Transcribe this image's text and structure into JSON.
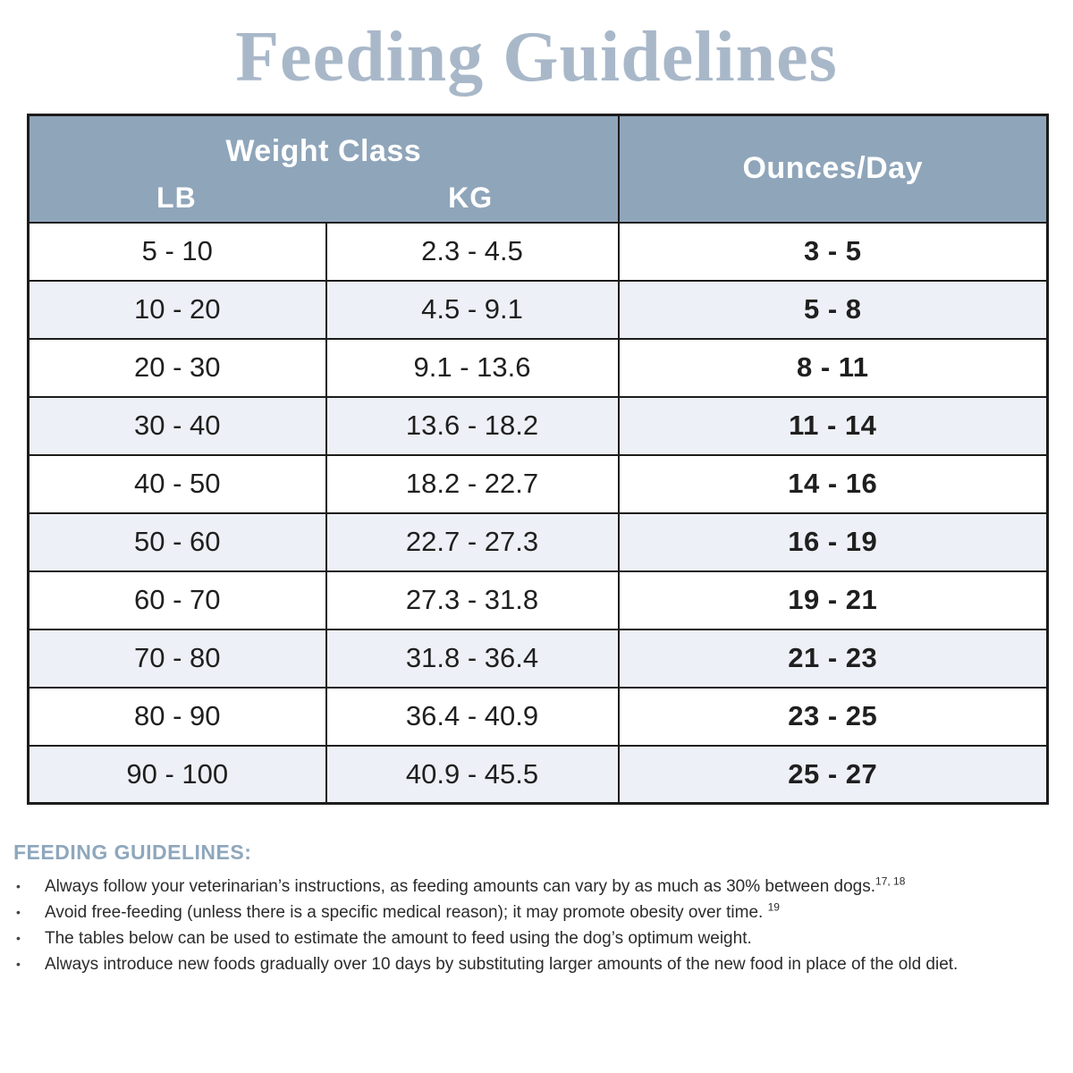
{
  "page": {
    "title": "Feeding Guidelines"
  },
  "table": {
    "header": {
      "weight_class": "Weight Class",
      "lb": "LB",
      "kg": "KG",
      "ounces": "Ounces/Day"
    },
    "rows": [
      {
        "lb": "5 - 10",
        "kg": "2.3 - 4.5",
        "oz": "3 - 5"
      },
      {
        "lb": "10 - 20",
        "kg": "4.5 - 9.1",
        "oz": "5 - 8"
      },
      {
        "lb": "20 - 30",
        "kg": "9.1 - 13.6",
        "oz": "8 - 11"
      },
      {
        "lb": "30 - 40",
        "kg": "13.6 - 18.2",
        "oz": "11 - 14"
      },
      {
        "lb": "40 - 50",
        "kg": "18.2 - 22.7",
        "oz": "14 - 16"
      },
      {
        "lb": "50 - 60",
        "kg": "22.7 - 27.3",
        "oz": "16 - 19"
      },
      {
        "lb": "60 - 70",
        "kg": "27.3 - 31.8",
        "oz": "19 - 21"
      },
      {
        "lb": "70 - 80",
        "kg": "31.8 - 36.4",
        "oz": "21 - 23"
      },
      {
        "lb": "80 - 90",
        "kg": "36.4 - 40.9",
        "oz": "23 - 25"
      },
      {
        "lb": "90 - 100",
        "kg": "40.9 - 45.5",
        "oz": "25 - 27"
      }
    ]
  },
  "notes": {
    "heading": "FEEDING GUIDELINES:",
    "bullet_glyph": "•",
    "bullets": [
      {
        "text": "Always follow your veterinarian’s instructions, as feeding amounts can vary by as much as 30% between dogs.",
        "sup": "17, 18"
      },
      {
        "text": "Avoid free-feeding (unless there is a specific medical reason); it may promote obesity over time. ",
        "sup": "19"
      },
      {
        "text": "The tables below can be used to estimate the amount to feed using the dog’s optimum weight.",
        "sup": ""
      },
      {
        "text": "Always introduce new foods gradually over 10 days by substituting larger amounts of the new food in place of the old diet.",
        "sup": ""
      }
    ]
  },
  "colors": {
    "title": "#a9b8c9",
    "header_bg": "#8fa5ba",
    "alt_row_bg": "#edf0f6",
    "border": "#1c1c1c",
    "notes_heading": "#8ea7bc",
    "body_text": "#2b2b2b"
  }
}
